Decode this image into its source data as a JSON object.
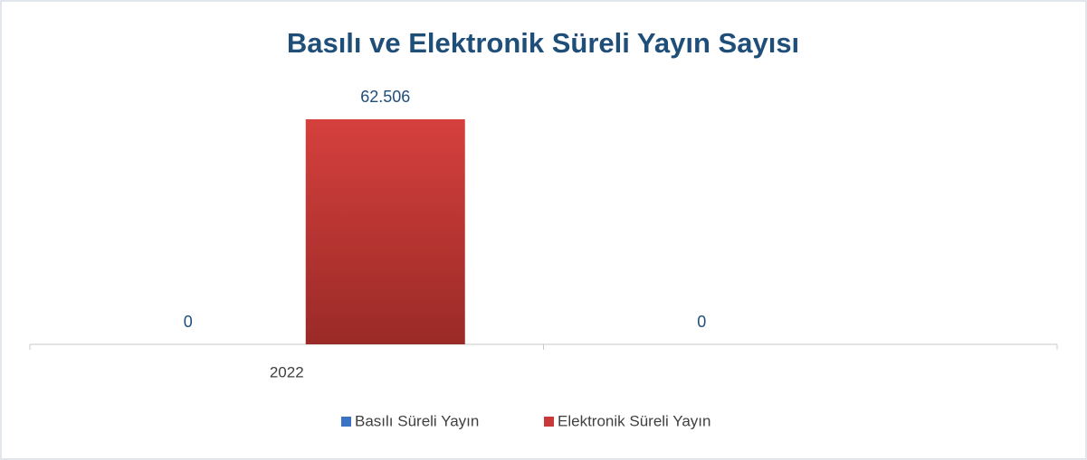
{
  "chart_data": {
    "type": "bar",
    "title": "Basılı ve Elektronik Süreli Yayın Sayısı",
    "categories": [
      "2022",
      null
    ],
    "series": [
      {
        "name": "Basılı Süreli Yayın",
        "color": "#3a73c4",
        "values": [
          0,
          0
        ]
      },
      {
        "name": "Elektronik Süreli Yayın",
        "color": "#c9393a",
        "values": [
          62506,
          null
        ],
        "value_labels": [
          "62.506",
          null
        ]
      }
    ]
  }
}
